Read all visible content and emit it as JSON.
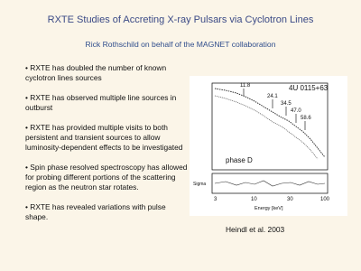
{
  "header": {
    "title": "RXTE Studies of Accreting X-ray Pulsars via Cyclotron Lines",
    "subtitle": "Rick Rothschild on behalf of the MAGNET collaboration"
  },
  "bullets": [
    "RXTE has doubled the number of known cyclotron lines sources",
    "RXTE has observed multiple line sources in outburst",
    "RXTE has provided multiple visits to both persistent and transient sources to allow luminosity-dependent effects to be investigated",
    "Spin phase resolved spectroscopy has allowed for probing different portions of the scattering region as the neutron star rotates.",
    "RXTE has revealed variations with pulse shape."
  ],
  "figure": {
    "source": "4U 0115+63",
    "phase": "phase D",
    "line_energies": [
      "11.8",
      "24.1",
      "34.5",
      "47.0",
      "58.6"
    ],
    "x_label": "Energy [keV]",
    "y_label_lower": "Sigma",
    "x_ticks": [
      "3",
      "10",
      "30",
      "100"
    ]
  },
  "caption": "Heindl et al. 2003"
}
